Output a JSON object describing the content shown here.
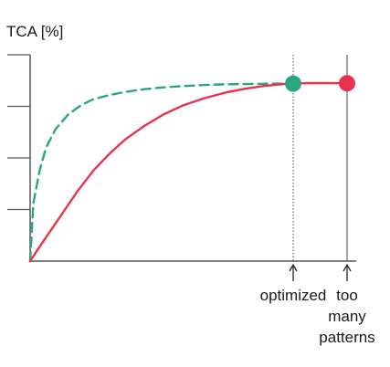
{
  "chart_data": {
    "type": "line",
    "ylabel": "TCA [%]",
    "xlabel": "",
    "xlim": [
      0,
      100
    ],
    "ylim": [
      0,
      100
    ],
    "y_ticks": [
      0,
      25,
      50,
      75,
      100
    ],
    "grid": false,
    "series": [
      {
        "style": "dashed",
        "color": "#2aa57e",
        "x": [
          0,
          1,
          3,
          5,
          8,
          12,
          16,
          20,
          25,
          30,
          36,
          42,
          48,
          54,
          60,
          66,
          72,
          78,
          83
        ],
        "y": [
          0,
          28,
          44,
          55,
          64,
          71,
          75.5,
          78.5,
          80.5,
          82,
          83.3,
          84.2,
          84.8,
          85.3,
          85.6,
          85.8,
          85.9,
          86,
          86
        ]
      },
      {
        "style": "solid",
        "color": "#e8334f",
        "x": [
          0,
          3,
          7,
          11,
          15,
          20,
          25,
          30,
          36,
          42,
          48,
          55,
          62,
          68,
          74,
          80,
          83,
          86,
          90,
          94,
          98,
          100
        ],
        "y": [
          0,
          7,
          16,
          25,
          34,
          44,
          52,
          59,
          65.5,
          71,
          75.3,
          79,
          81.8,
          83.6,
          84.9,
          85.8,
          86,
          86.2,
          86.3,
          86.3,
          86.2,
          86.2
        ]
      }
    ],
    "markers": [
      {
        "x": 83,
        "y": 86,
        "color": "#2aa57e"
      },
      {
        "x": 100,
        "y": 86.2,
        "color": "#e8334f"
      }
    ],
    "annotations": [
      {
        "x": 83,
        "text": "optimized",
        "line": "dotted"
      },
      {
        "x": 100,
        "text": "too\nmany\npatterns",
        "line": "solid"
      }
    ]
  }
}
